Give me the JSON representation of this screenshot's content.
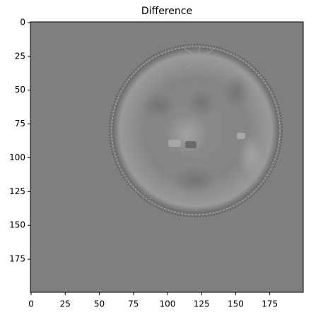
{
  "chart_data": {
    "type": "image",
    "title": "Difference",
    "xlim": [
      -0.5,
      199.5
    ],
    "ylim": [
      199.5,
      -0.5
    ],
    "xticks": [
      0,
      25,
      50,
      75,
      100,
      125,
      150,
      175
    ],
    "yticks": [
      0,
      25,
      50,
      75,
      100,
      125,
      150,
      175
    ]
  }
}
